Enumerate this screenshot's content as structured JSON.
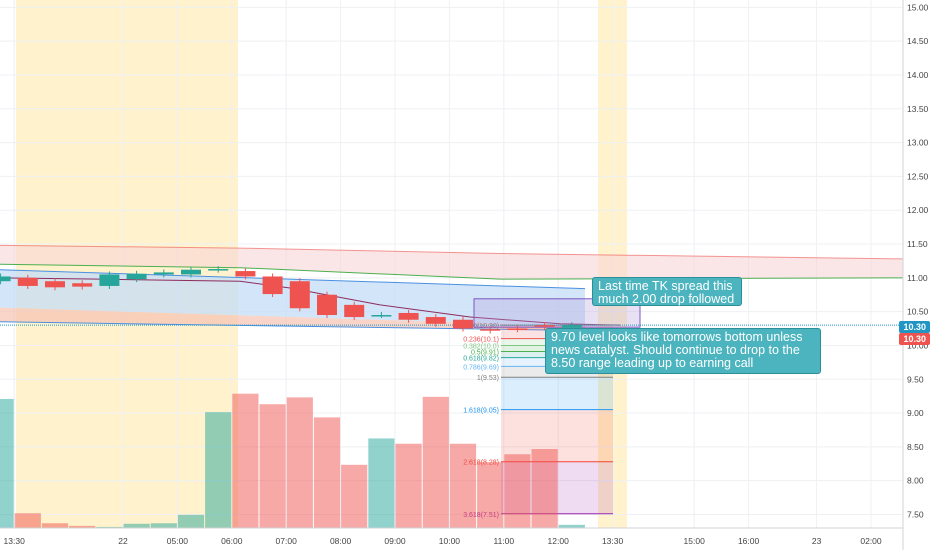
{
  "chart_data": {
    "type": "candlestick",
    "price_axis": {
      "ylim": [
        7.3,
        15.05
      ],
      "ticks": [
        "15.00",
        "14.50",
        "14.00",
        "13.50",
        "13.00",
        "12.50",
        "12.00",
        "11.50",
        "11.00",
        "10.50",
        "10.00",
        "9.50",
        "9.00",
        "8.50",
        "8.00",
        "7.50"
      ],
      "tick_values": [
        15.0,
        14.5,
        14.0,
        13.5,
        13.0,
        12.5,
        12.0,
        11.5,
        11.0,
        10.5,
        10.0,
        9.5,
        9.0,
        8.5,
        8.0,
        7.5
      ]
    },
    "time_axis": {
      "labels": [
        "13:30",
        "22",
        "05:00",
        "06:00",
        "07:00",
        "08:00",
        "09:00",
        "10:00",
        "11:00",
        "12:00",
        "13:30",
        "15:00",
        "16:00",
        "23",
        "02:00"
      ],
      "label_index": [
        0.5,
        4.5,
        6.5,
        8.5,
        10.5,
        12.5,
        14.5,
        16.5,
        18.5,
        20.5,
        22.5,
        25.5,
        27.5,
        30,
        32
      ]
    },
    "candles": [
      {
        "i": 0,
        "open": 10.95,
        "close": 11.02
      },
      {
        "i": 1,
        "open": 11.0,
        "close": 10.88
      },
      {
        "i": 2,
        "open": 10.95,
        "close": 10.86
      },
      {
        "i": 3,
        "open": 10.92,
        "close": 10.87
      },
      {
        "i": 4,
        "open": 10.88,
        "close": 11.05
      },
      {
        "i": 5,
        "open": 10.98,
        "close": 11.06
      },
      {
        "i": 6,
        "open": 11.05,
        "close": 11.08
      },
      {
        "i": 7,
        "open": 11.05,
        "close": 11.12
      },
      {
        "i": 8,
        "open": 11.12,
        "close": 11.13
      },
      {
        "i": 9,
        "open": 11.1,
        "close": 11.02
      },
      {
        "i": 10,
        "open": 11.02,
        "close": 10.76
      },
      {
        "i": 11,
        "open": 10.95,
        "close": 10.55
      },
      {
        "i": 12,
        "open": 10.75,
        "close": 10.45
      },
      {
        "i": 13,
        "open": 10.6,
        "close": 10.42
      },
      {
        "i": 14,
        "open": 10.45,
        "close": 10.45
      },
      {
        "i": 15,
        "open": 10.48,
        "close": 10.38
      },
      {
        "i": 16,
        "open": 10.42,
        "close": 10.32
      },
      {
        "i": 17,
        "open": 10.38,
        "close": 10.25
      },
      {
        "i": 18,
        "open": 10.24,
        "close": 10.22
      },
      {
        "i": 19,
        "open": 10.25,
        "close": 10.24
      },
      {
        "i": 20,
        "open": 10.3,
        "close": 10.28
      },
      {
        "i": 21,
        "open": 10.26,
        "close": 10.3
      }
    ],
    "volume": [
      2.45,
      0.28,
      0.09,
      0.04,
      0.02,
      0.08,
      0.09,
      0.25,
      2.2,
      2.55,
      2.35,
      2.48,
      2.1,
      1.2,
      1.7,
      1.6,
      2.49,
      1.6,
      1.25,
      1.4,
      1.5,
      0.06
    ],
    "volume_max": 3.0,
    "fib_levels": [
      {
        "label": "0(10.30)",
        "value": 10.3
      },
      {
        "label": "0.236(10.1)",
        "value": 10.1
      },
      {
        "label": "0.382(10.0)",
        "value": 10.0
      },
      {
        "label": "0.5(9.91)",
        "value": 9.91
      },
      {
        "label": "0.618(9.82)",
        "value": 9.82
      },
      {
        "label": "0.786(9.69)",
        "value": 9.69
      },
      {
        "label": "1(9.53)",
        "value": 9.53
      },
      {
        "label": "1.618(9.05)",
        "value": 9.05
      },
      {
        "label": "2.618(8.28)",
        "value": 8.28
      },
      {
        "label": "3.618(7.51)",
        "value": 7.51
      }
    ],
    "current_price": {
      "label": "10.30",
      "value": 10.3
    },
    "second_price": {
      "label": "10.30",
      "value": 10.19
    },
    "grid": true
  },
  "notes": {
    "note1": "Last time TK spread this much 2.00 drop followed",
    "note2": "9.70 level looks like tomorrows bottom unless news catalyst. Should continue to drop to the 8.50 range leading up to earning call"
  },
  "colors": {
    "up": "#26a69a",
    "down": "#ef5350",
    "session": "#fff2cc",
    "axis_text": "#444444",
    "grid": "#eef0f3",
    "note_bg": "#4bb4bf"
  }
}
